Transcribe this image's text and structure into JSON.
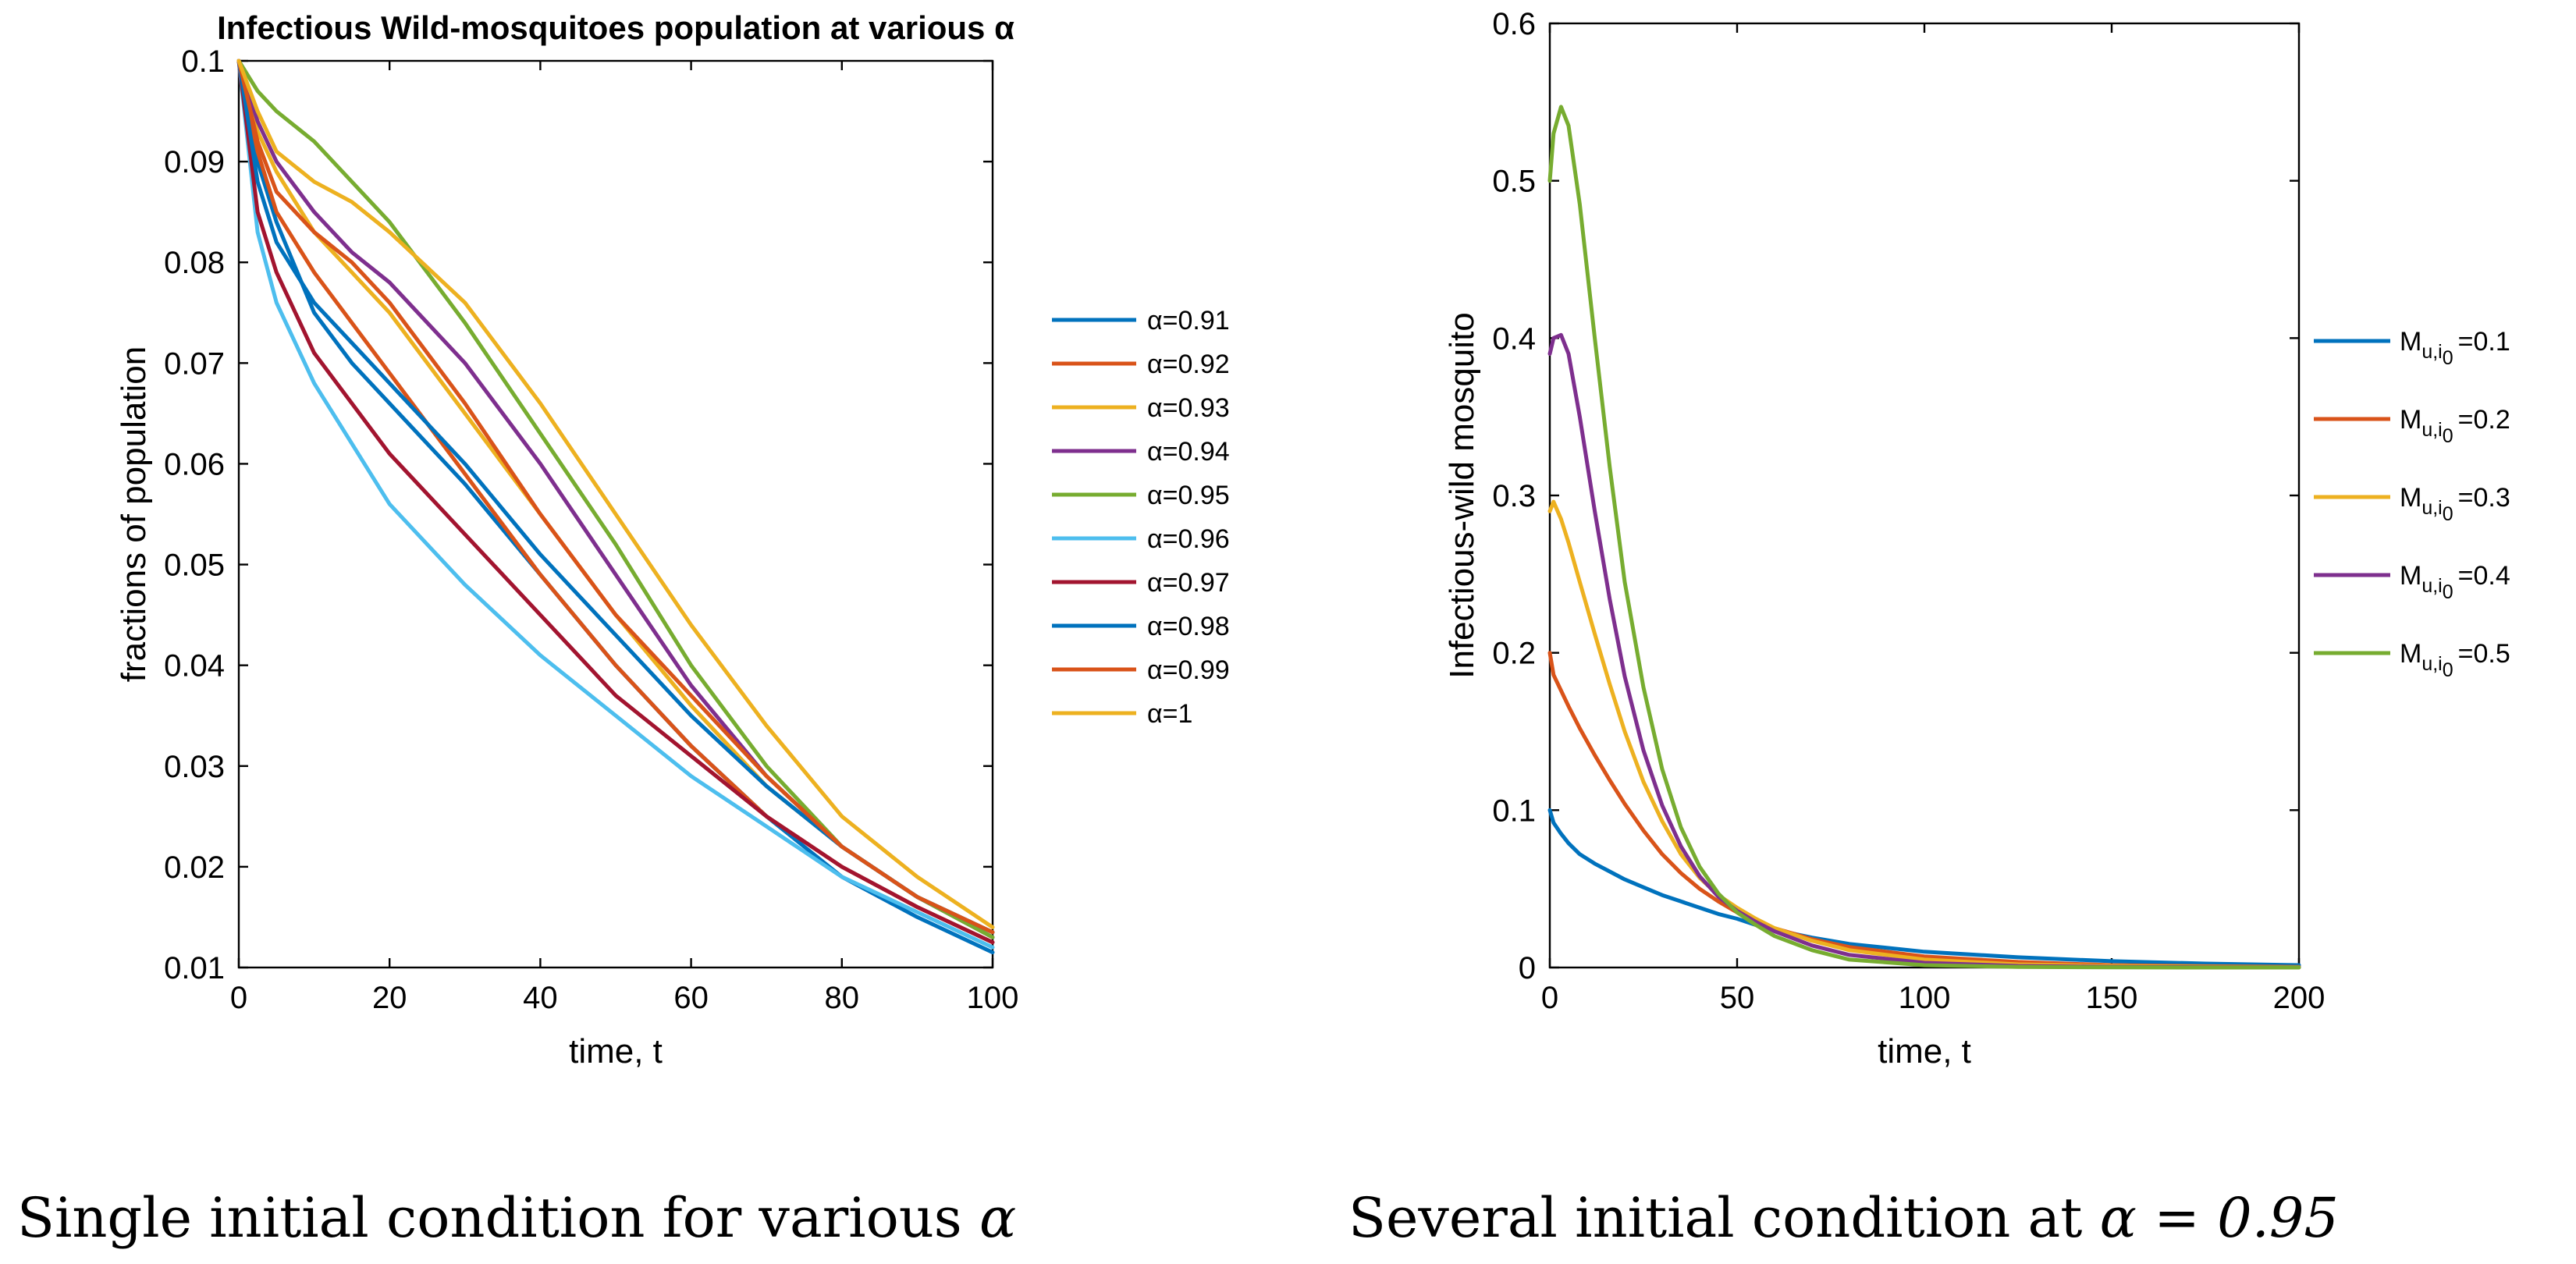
{
  "chart_data": [
    {
      "type": "line",
      "title": "Infectious Wild-mosquitoes population at various α",
      "xlabel": "time, t",
      "ylabel": "fractions of population",
      "xlim": [
        0,
        100
      ],
      "ylim": [
        0.01,
        0.1
      ],
      "xticks": [
        0,
        20,
        40,
        60,
        80,
        100
      ],
      "yticks": [
        0.01,
        0.02,
        0.03,
        0.04,
        0.05,
        0.06,
        0.07,
        0.08,
        0.09,
        0.1
      ],
      "x": [
        0,
        2.5,
        5,
        10,
        15,
        20,
        30,
        40,
        50,
        60,
        70,
        80,
        90,
        100
      ],
      "legend_position": "outside-right",
      "series": [
        {
          "name": "α=0.91",
          "color": "#0072BD",
          "values": [
            0.1,
            0.09,
            0.084,
            0.075,
            0.07,
            0.066,
            0.058,
            0.049,
            0.04,
            0.032,
            0.025,
            0.019,
            0.015,
            0.0115
          ]
        },
        {
          "name": "α=0.92",
          "color": "#D95319",
          "values": [
            0.1,
            0.091,
            0.085,
            0.079,
            0.074,
            0.069,
            0.059,
            0.049,
            0.04,
            0.032,
            0.025,
            0.02,
            0.016,
            0.0125
          ]
        },
        {
          "name": "α=0.93",
          "color": "#EDB120",
          "values": [
            0.1,
            0.093,
            0.089,
            0.083,
            0.079,
            0.075,
            0.065,
            0.055,
            0.045,
            0.036,
            0.028,
            0.022,
            0.017,
            0.0135
          ]
        },
        {
          "name": "α=0.94",
          "color": "#7E2F8E",
          "values": [
            0.1,
            0.094,
            0.09,
            0.085,
            0.081,
            0.078,
            0.07,
            0.06,
            0.049,
            0.038,
            0.029,
            0.022,
            0.017,
            0.013
          ]
        },
        {
          "name": "α=0.95",
          "color": "#77AC30",
          "values": [
            0.1,
            0.097,
            0.095,
            0.092,
            0.088,
            0.084,
            0.074,
            0.063,
            0.052,
            0.04,
            0.03,
            0.022,
            0.017,
            0.013
          ]
        },
        {
          "name": "α=0.96",
          "color": "#4DBEEE",
          "values": [
            0.1,
            0.083,
            0.076,
            0.068,
            0.062,
            0.056,
            0.048,
            0.041,
            0.035,
            0.029,
            0.024,
            0.019,
            0.0155,
            0.012
          ]
        },
        {
          "name": "α=0.97",
          "color": "#A2142F",
          "values": [
            0.1,
            0.085,
            0.079,
            0.071,
            0.066,
            0.061,
            0.053,
            0.045,
            0.037,
            0.031,
            0.025,
            0.02,
            0.016,
            0.0125
          ]
        },
        {
          "name": "α=0.98",
          "color": "#0072BD",
          "values": [
            0.1,
            0.088,
            0.082,
            0.076,
            0.072,
            0.068,
            0.06,
            0.051,
            0.043,
            0.035,
            0.028,
            0.022,
            0.017,
            0.0135
          ]
        },
        {
          "name": "α=0.99",
          "color": "#D95319",
          "values": [
            0.1,
            0.092,
            0.087,
            0.083,
            0.08,
            0.076,
            0.066,
            0.055,
            0.045,
            0.037,
            0.029,
            0.022,
            0.017,
            0.0135
          ]
        },
        {
          "name": "α=1",
          "color": "#EDB120",
          "values": [
            0.1,
            0.095,
            0.091,
            0.088,
            0.086,
            0.083,
            0.076,
            0.066,
            0.055,
            0.044,
            0.034,
            0.025,
            0.019,
            0.014
          ]
        }
      ]
    },
    {
      "type": "line",
      "title": "",
      "xlabel": "time, t",
      "ylabel": "Infectious-wild mosquito",
      "xlim": [
        0,
        200
      ],
      "ylim": [
        0,
        0.6
      ],
      "xticks": [
        0,
        50,
        100,
        150,
        200
      ],
      "yticks": [
        0,
        0.1,
        0.2,
        0.3,
        0.4,
        0.5,
        0.6
      ],
      "x": [
        0,
        1,
        3,
        5,
        8,
        12,
        16,
        20,
        25,
        30,
        35,
        40,
        45,
        50,
        55,
        60,
        70,
        80,
        100,
        125,
        150,
        175,
        200
      ],
      "legend_position": "outside-right",
      "series": [
        {
          "name": "M",
          "subscript": "u,i",
          "subsub": "0",
          "suffix": "=0.1",
          "color": "#0072BD",
          "values": [
            0.1,
            0.092,
            0.085,
            0.079,
            0.072,
            0.066,
            0.061,
            0.056,
            0.051,
            0.046,
            0.042,
            0.038,
            0.034,
            0.031,
            0.027,
            0.024,
            0.019,
            0.015,
            0.01,
            0.0065,
            0.004,
            0.0025,
            0.0015
          ]
        },
        {
          "name": "M",
          "subscript": "u,i",
          "subsub": "0",
          "suffix": "=0.2",
          "color": "#D95319",
          "values": [
            0.2,
            0.186,
            0.176,
            0.166,
            0.152,
            0.135,
            0.119,
            0.104,
            0.087,
            0.072,
            0.06,
            0.05,
            0.042,
            0.035,
            0.029,
            0.025,
            0.018,
            0.013,
            0.007,
            0.0035,
            0.0015,
            0.0008,
            0.0004
          ]
        },
        {
          "name": "M",
          "subscript": "u,i",
          "subsub": "0",
          "suffix": "=0.3",
          "color": "#EDB120",
          "values": [
            0.29,
            0.296,
            0.285,
            0.27,
            0.245,
            0.212,
            0.18,
            0.15,
            0.118,
            0.093,
            0.072,
            0.057,
            0.046,
            0.038,
            0.031,
            0.025,
            0.017,
            0.011,
            0.005,
            0.002,
            0.001,
            0.0005,
            0.0002
          ]
        },
        {
          "name": "M",
          "subscript": "u,i",
          "subsub": "0",
          "suffix": "=0.4",
          "color": "#7E2F8E",
          "values": [
            0.39,
            0.4,
            0.402,
            0.39,
            0.35,
            0.29,
            0.234,
            0.185,
            0.138,
            0.103,
            0.077,
            0.058,
            0.045,
            0.036,
            0.029,
            0.023,
            0.014,
            0.008,
            0.003,
            0.001,
            0.0004,
            0.0002,
            0.0001
          ]
        },
        {
          "name": "M",
          "subscript": "u,i",
          "subsub": "0",
          "suffix": "=0.5",
          "color": "#77AC30",
          "values": [
            0.5,
            0.53,
            0.547,
            0.535,
            0.485,
            0.4,
            0.318,
            0.245,
            0.178,
            0.126,
            0.089,
            0.064,
            0.047,
            0.035,
            0.027,
            0.02,
            0.011,
            0.005,
            0.0015,
            0.0004,
            0.0001,
            0.0,
            0.0
          ]
        }
      ]
    }
  ],
  "captions": {
    "left_text": "Single initial condition for various ",
    "left_symbol": "α",
    "right_text": "Several initial condition at ",
    "right_math": "α = 0.95"
  }
}
